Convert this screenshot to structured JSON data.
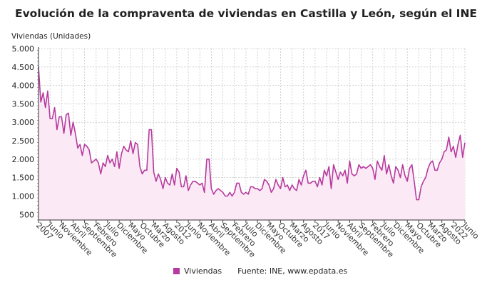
{
  "chart_data": {
    "type": "area",
    "title": "Evolución de la compraventa de viviendas en Castilla y León, según el INE",
    "ylabel": "Viviendas (Unidades)",
    "xlabel": "",
    "ylim": [
      350,
      5000
    ],
    "yticks": [
      500,
      1000,
      1500,
      2000,
      2500,
      3000,
      3500,
      4000,
      4500,
      5000
    ],
    "ytick_labels": [
      "500",
      "1.000",
      "1.500",
      "2.000",
      "2.500",
      "3.000",
      "3.500",
      "4.000",
      "4.500",
      "5.000"
    ],
    "x_start": "2007-01",
    "x_end": "2022-06",
    "xtick_labels": [
      "2007",
      "Junio",
      "Noviembre",
      "Abril",
      "Septiembre",
      "Febrero",
      "Julio",
      "Diciembre",
      "Mayo",
      "Octubre",
      "Marzo",
      "Agosto",
      "2012",
      "Junio",
      "Noviembre",
      "Abril",
      "Septiembre",
      "Febrero",
      "Julio",
      "Diciembre",
      "Mayo",
      "Octubre",
      "Marzo",
      "Agosto",
      "2017",
      "Junio",
      "Noviembre",
      "Abril",
      "Septiembre",
      "Febrero",
      "Julio",
      "Diciembre",
      "Mayo",
      "Octubre",
      "Marzo",
      "Agosto",
      "2022",
      "Junio"
    ],
    "grid": true,
    "legend_position": "bottom",
    "series": [
      {
        "name": "Viviendas",
        "color": "#b73a9e",
        "fill": "#fbe9f6",
        "values": [
          4500,
          3550,
          3800,
          3400,
          3850,
          3100,
          3100,
          3400,
          2800,
          3150,
          3150,
          2700,
          3200,
          3250,
          2650,
          3000,
          2700,
          2300,
          2400,
          2100,
          2400,
          2350,
          2250,
          1900,
          1950,
          2000,
          1900,
          1600,
          1900,
          1800,
          2100,
          1900,
          2000,
          1800,
          2200,
          1750,
          2150,
          2350,
          2250,
          2200,
          2500,
          2150,
          2450,
          2400,
          1800,
          1600,
          1700,
          1700,
          2800,
          2800,
          1650,
          1400,
          1600,
          1450,
          1200,
          1500,
          1350,
          1300,
          1600,
          1300,
          1750,
          1650,
          1250,
          1250,
          1550,
          1150,
          1300,
          1400,
          1400,
          1350,
          1300,
          1350,
          1100,
          2000,
          2000,
          1200,
          1050,
          1150,
          1200,
          1150,
          1100,
          1000,
          1000,
          1100,
          1000,
          1100,
          1350,
          1350,
          1100,
          1050,
          1100,
          1050,
          1250,
          1250,
          1200,
          1200,
          1150,
          1200,
          1450,
          1400,
          1300,
          1100,
          1200,
          1450,
          1300,
          1200,
          1500,
          1250,
          1300,
          1150,
          1300,
          1200,
          1150,
          1450,
          1300,
          1550,
          1700,
          1350,
          1350,
          1400,
          1400,
          1250,
          1500,
          1300,
          1700,
          1550,
          1800,
          1200,
          1850,
          1650,
          1450,
          1650,
          1550,
          1700,
          1350,
          1950,
          1600,
          1550,
          1600,
          1850,
          1750,
          1800,
          1750,
          1800,
          1850,
          1750,
          1450,
          1950,
          1800,
          1700,
          2100,
          1600,
          1850,
          1550,
          1350,
          1800,
          1700,
          1500,
          1850,
          1550,
          1400,
          1750,
          1850,
          1400,
          900,
          900,
          1250,
          1400,
          1500,
          1750,
          1900,
          1950,
          1700,
          1700,
          1900,
          2000,
          2200,
          2250,
          2600,
          2200,
          2350,
          2050,
          2400,
          2650,
          2050,
          2450
        ]
      }
    ]
  },
  "legend": {
    "series_label": "Viviendas",
    "source": "Fuente: INE, www.epdata.es"
  }
}
